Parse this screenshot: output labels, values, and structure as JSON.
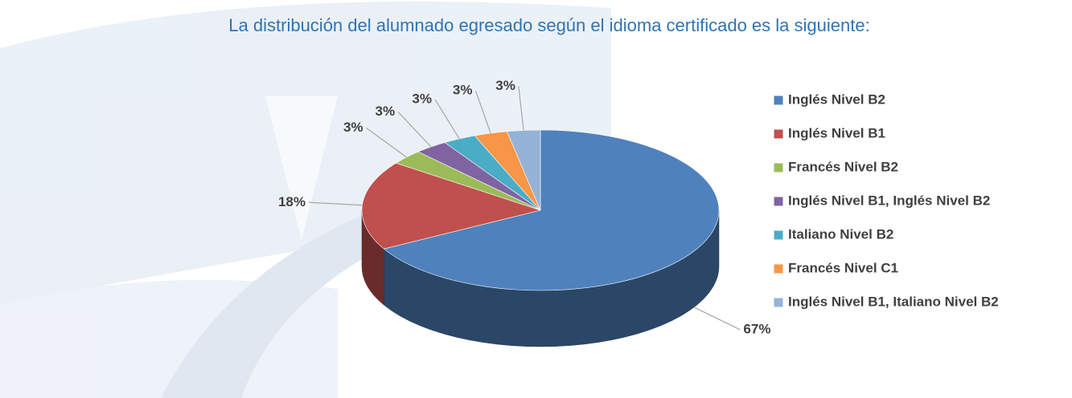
{
  "chart_data": {
    "type": "pie",
    "title": "La distribución del alumnado egresado según el idioma certificado es la siguiente:",
    "categories": [
      "Inglés Nivel B2",
      "Inglés Nivel B1",
      "Francés Nivel B2",
      "Inglés Nivel B1, Inglés Nivel B2",
      "Italiano Nivel B2",
      "Francés Nivel C1",
      "Inglés Nivel B1, Italiano Nivel B2"
    ],
    "values": [
      67,
      18,
      3,
      3,
      3,
      3,
      3
    ],
    "value_labels": [
      "67%",
      "18%",
      "3%",
      "3%",
      "3%",
      "3%",
      "3%"
    ],
    "colors": [
      "#4f81bd",
      "#c0504d",
      "#9bbb59",
      "#8064a2",
      "#4bacc6",
      "#f79646",
      "#95b3d7"
    ],
    "legend": "right"
  }
}
